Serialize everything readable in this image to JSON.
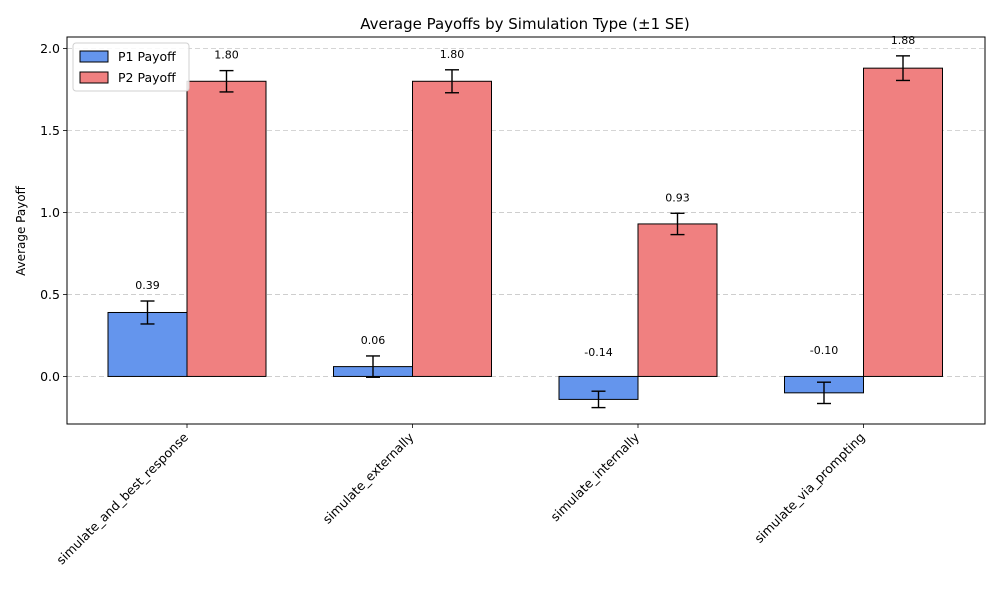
{
  "chart_data": {
    "type": "bar",
    "title": "Average Payoffs by Simulation Type (±1 SE)",
    "xlabel": "",
    "ylabel": "Average Payoff",
    "ylim": [
      -0.29,
      2.07
    ],
    "yticks": [
      0.0,
      0.5,
      1.0,
      1.5,
      2.0
    ],
    "ytick_labels": [
      "0.0",
      "0.5",
      "1.0",
      "1.5",
      "2.0"
    ],
    "grid": "y-dashed",
    "legend_position": "top-left",
    "categories": [
      "simulate_and_best_response",
      "simulate_externally",
      "simulate_internally",
      "simulate_via_prompting"
    ],
    "series": [
      {
        "name": "P1 Payoff",
        "color": "#6495ED",
        "values": [
          0.39,
          0.06,
          -0.14,
          -0.1
        ],
        "errors": [
          0.07,
          0.065,
          0.05,
          0.065
        ],
        "labels": [
          "0.39",
          "0.06",
          "-0.14",
          "-0.10"
        ]
      },
      {
        "name": "P2 Payoff",
        "color": "#F08080",
        "values": [
          1.8,
          1.8,
          0.93,
          1.88
        ],
        "errors": [
          0.065,
          0.07,
          0.065,
          0.075
        ],
        "labels": [
          "1.80",
          "1.80",
          "0.93",
          "1.88"
        ]
      }
    ]
  }
}
